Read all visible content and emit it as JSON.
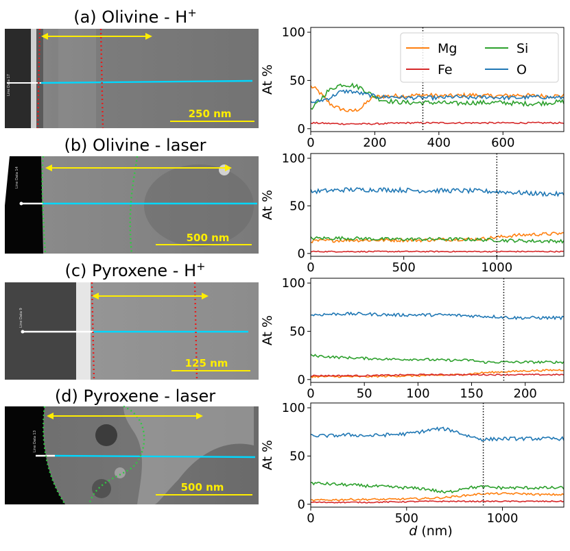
{
  "figure": {
    "xlabel_var": "d",
    "xlabel_unit": " (nm)"
  },
  "colors": {
    "Mg": "#ff7f0e",
    "Fe": "#d62728",
    "Si": "#2ca02c",
    "O": "#1f77b4",
    "scan_line": "#00d8ff",
    "boundary": "#e81c1c",
    "boundary_laser": "#2ecc40",
    "arrow": "#ffee00",
    "scalebar": "#ffee00"
  },
  "panels": [
    {
      "title_main": "(a) Olivine - H",
      "title_sup": "+",
      "scalebar_label": "250 nm",
      "line_label": "Line Data 17",
      "boundary_type": "h"
    },
    {
      "title_main": "(b) Olivine - laser",
      "title_sup": "",
      "scalebar_label": "500 nm",
      "line_label": "Line Data 14",
      "boundary_type": "laser"
    },
    {
      "title_main": "(c) Pyroxene - H",
      "title_sup": "+",
      "scalebar_label": "125 nm",
      "line_label": "Line Data 9",
      "boundary_type": "h"
    },
    {
      "title_main": "(d) Pyroxene - laser",
      "title_sup": "",
      "scalebar_label": "500 nm",
      "line_label": "Line Data 13",
      "boundary_type": "laser"
    }
  ],
  "chart_data": [
    {
      "type": "line",
      "ylabel": "At %",
      "xlabel": "",
      "xlim": [
        0,
        790
      ],
      "ylim": [
        -3,
        105
      ],
      "xticks": [
        0,
        200,
        400,
        600
      ],
      "yticks": [
        0,
        50,
        100
      ],
      "dotted_line_x": 350,
      "legend": {
        "placement": "top-right",
        "ncol": 2,
        "order": [
          "Mg",
          "Si",
          "Fe",
          "O"
        ]
      },
      "series": [
        {
          "name": "Mg",
          "points": [
            [
              0,
              44
            ],
            [
              20,
              40
            ],
            [
              40,
              33
            ],
            [
              60,
              26
            ],
            [
              80,
              22
            ],
            [
              100,
              20
            ],
            [
              120,
              18
            ],
            [
              140,
              19
            ],
            [
              160,
              22
            ],
            [
              180,
              29
            ],
            [
              200,
              33
            ],
            [
              250,
              34
            ],
            [
              300,
              34
            ],
            [
              350,
              35
            ],
            [
              400,
              34
            ],
            [
              450,
              34
            ],
            [
              500,
              35
            ],
            [
              550,
              34
            ],
            [
              600,
              34
            ],
            [
              650,
              35
            ],
            [
              700,
              34
            ],
            [
              790,
              34
            ]
          ],
          "noise": 2.2
        },
        {
          "name": "Fe",
          "points": [
            [
              0,
              6
            ],
            [
              100,
              5
            ],
            [
              200,
              5
            ],
            [
              300,
              6
            ],
            [
              400,
              6
            ],
            [
              500,
              6
            ],
            [
              600,
              6
            ],
            [
              700,
              6
            ],
            [
              790,
              6
            ]
          ],
          "noise": 0.8
        },
        {
          "name": "Si",
          "points": [
            [
              0,
              19
            ],
            [
              20,
              26
            ],
            [
              50,
              38
            ],
            [
              80,
              44
            ],
            [
              100,
              46
            ],
            [
              130,
              45
            ],
            [
              160,
              42
            ],
            [
              190,
              35
            ],
            [
              220,
              30
            ],
            [
              260,
              28
            ],
            [
              300,
              27
            ],
            [
              350,
              27
            ],
            [
              400,
              27
            ],
            [
              450,
              26
            ],
            [
              500,
              27
            ],
            [
              550,
              27
            ],
            [
              600,
              27
            ],
            [
              650,
              26
            ],
            [
              700,
              26
            ],
            [
              790,
              28
            ]
          ],
          "noise": 2.4
        },
        {
          "name": "O",
          "points": [
            [
              0,
              27
            ],
            [
              30,
              29
            ],
            [
              60,
              32
            ],
            [
              90,
              38
            ],
            [
              120,
              39
            ],
            [
              150,
              37
            ],
            [
              180,
              35
            ],
            [
              210,
              33
            ],
            [
              260,
              33
            ],
            [
              300,
              32
            ],
            [
              350,
              32
            ],
            [
              400,
              32
            ],
            [
              450,
              33
            ],
            [
              500,
              32
            ],
            [
              550,
              33
            ],
            [
              600,
              32
            ],
            [
              650,
              32
            ],
            [
              700,
              33
            ],
            [
              790,
              32
            ]
          ],
          "noise": 2.0
        }
      ]
    },
    {
      "type": "line",
      "ylabel": "At %",
      "xlabel": "",
      "xlim": [
        0,
        1360
      ],
      "ylim": [
        -3,
        105
      ],
      "xticks": [
        0,
        500,
        1000
      ],
      "yticks": [
        0,
        50,
        100
      ],
      "dotted_line_x": 1000,
      "series": [
        {
          "name": "Mg",
          "points": [
            [
              0,
              13
            ],
            [
              200,
              14
            ],
            [
              400,
              14
            ],
            [
              600,
              14
            ],
            [
              800,
              15
            ],
            [
              900,
              15
            ],
            [
              1000,
              17
            ],
            [
              1100,
              19
            ],
            [
              1200,
              20
            ],
            [
              1360,
              21
            ]
          ],
          "noise": 1.8
        },
        {
          "name": "Fe",
          "points": [
            [
              0,
              2
            ],
            [
              300,
              2
            ],
            [
              600,
              2
            ],
            [
              900,
              2
            ],
            [
              1200,
              2
            ],
            [
              1360,
              2
            ]
          ],
          "noise": 0.6
        },
        {
          "name": "Si",
          "points": [
            [
              0,
              16
            ],
            [
              200,
              16
            ],
            [
              400,
              15
            ],
            [
              600,
              15
            ],
            [
              800,
              15
            ],
            [
              1000,
              14
            ],
            [
              1200,
              13
            ],
            [
              1360,
              13
            ]
          ],
          "noise": 1.8
        },
        {
          "name": "O",
          "points": [
            [
              0,
              65
            ],
            [
              200,
              67
            ],
            [
              400,
              67
            ],
            [
              600,
              66
            ],
            [
              800,
              66
            ],
            [
              1000,
              65
            ],
            [
              1200,
              63
            ],
            [
              1360,
              62
            ]
          ],
          "noise": 2.4
        }
      ]
    },
    {
      "type": "line",
      "ylabel": "At %",
      "xlabel": "",
      "xlim": [
        0,
        236
      ],
      "ylim": [
        -3,
        105
      ],
      "xticks": [
        0,
        50,
        100,
        150,
        200
      ],
      "yticks": [
        0,
        50,
        100
      ],
      "dotted_line_x": 180,
      "series": [
        {
          "name": "Mg",
          "points": [
            [
              0,
              3
            ],
            [
              50,
              3
            ],
            [
              100,
              4
            ],
            [
              140,
              5
            ],
            [
              160,
              7
            ],
            [
              180,
              8
            ],
            [
              200,
              9
            ],
            [
              236,
              10
            ]
          ],
          "noise": 0.9
        },
        {
          "name": "Fe",
          "points": [
            [
              0,
              4
            ],
            [
              50,
              4
            ],
            [
              100,
              5
            ],
            [
              150,
              5
            ],
            [
              200,
              5
            ],
            [
              236,
              5
            ]
          ],
          "noise": 0.7
        },
        {
          "name": "Si",
          "points": [
            [
              0,
              25
            ],
            [
              25,
              23
            ],
            [
              50,
              22
            ],
            [
              75,
              21
            ],
            [
              100,
              21
            ],
            [
              125,
              20
            ],
            [
              150,
              20
            ],
            [
              160,
              18
            ],
            [
              180,
              18
            ],
            [
              200,
              18
            ],
            [
              236,
              18
            ]
          ],
          "noise": 1.3
        },
        {
          "name": "O",
          "points": [
            [
              0,
              67
            ],
            [
              25,
              68
            ],
            [
              50,
              68
            ],
            [
              75,
              67
            ],
            [
              100,
              67
            ],
            [
              125,
              67
            ],
            [
              150,
              66
            ],
            [
              175,
              65
            ],
            [
              190,
              64
            ],
            [
              210,
              64
            ],
            [
              236,
              64
            ]
          ],
          "noise": 1.6
        }
      ]
    },
    {
      "type": "line",
      "ylabel": "At %",
      "xlabel": "d (nm)",
      "xlim": [
        0,
        1320
      ],
      "ylim": [
        -3,
        105
      ],
      "xticks": [
        0,
        500,
        1000
      ],
      "yticks": [
        0,
        50,
        100
      ],
      "dotted_line_x": 900,
      "series": [
        {
          "name": "Mg",
          "points": [
            [
              0,
              4
            ],
            [
              200,
              5
            ],
            [
              400,
              5
            ],
            [
              600,
              6
            ],
            [
              700,
              7
            ],
            [
              800,
              9
            ],
            [
              900,
              11
            ],
            [
              1000,
              11
            ],
            [
              1100,
              11
            ],
            [
              1200,
              10
            ],
            [
              1320,
              10
            ]
          ],
          "noise": 1.0
        },
        {
          "name": "Fe",
          "points": [
            [
              0,
              2
            ],
            [
              300,
              2
            ],
            [
              600,
              3
            ],
            [
              900,
              3
            ],
            [
              1200,
              3
            ],
            [
              1320,
              3
            ]
          ],
          "noise": 0.6
        },
        {
          "name": "Si",
          "points": [
            [
              0,
              22
            ],
            [
              100,
              21
            ],
            [
              200,
              20
            ],
            [
              300,
              19
            ],
            [
              400,
              18
            ],
            [
              500,
              17
            ],
            [
              600,
              16
            ],
            [
              700,
              12
            ],
            [
              750,
              14
            ],
            [
              800,
              17
            ],
            [
              900,
              18
            ],
            [
              1000,
              17
            ],
            [
              1100,
              17
            ],
            [
              1200,
              17
            ],
            [
              1320,
              17
            ]
          ],
          "noise": 1.6
        },
        {
          "name": "O",
          "points": [
            [
              0,
              71
            ],
            [
              100,
              71
            ],
            [
              200,
              72
            ],
            [
              300,
              71
            ],
            [
              400,
              72
            ],
            [
              500,
              73
            ],
            [
              600,
              76
            ],
            [
              650,
              78
            ],
            [
              700,
              78
            ],
            [
              750,
              76
            ],
            [
              800,
              72
            ],
            [
              900,
              67
            ],
            [
              1000,
              68
            ],
            [
              1100,
              68
            ],
            [
              1200,
              68
            ],
            [
              1320,
              68
            ]
          ],
          "noise": 1.8
        }
      ]
    }
  ]
}
